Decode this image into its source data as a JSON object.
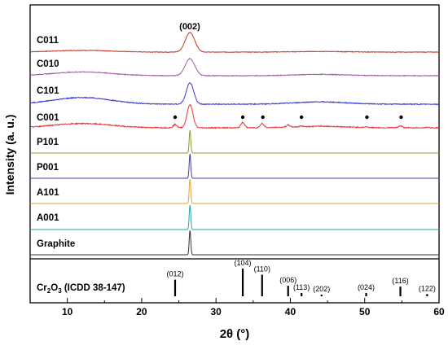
{
  "chart_data": {
    "type": "line",
    "xlabel": "2θ (°)",
    "ylabel": "Intensity (a. u.)",
    "xlim": [
      5,
      60
    ],
    "x_ticks": [
      10,
      20,
      30,
      40,
      50,
      60
    ],
    "x_tick_labels": [
      "10",
      "20",
      "30",
      "40",
      "50",
      "60"
    ],
    "peak_label_002": "(002)",
    "graphite_peak_2theta": 26.5,
    "series": [
      {
        "name": "C011",
        "color": "#c0392b",
        "shape": "amorphous",
        "hump_amp": 0.25,
        "peak_amp": 1.0,
        "peak_width": 0.9,
        "noise": 0.03
      },
      {
        "name": "C010",
        "color": "#a05ca6",
        "shape": "hump",
        "hump_amp": 0.6,
        "peak_amp": 0.95,
        "peak_width": 0.9,
        "noise": 0.04
      },
      {
        "name": "C101",
        "color": "#3b3bd9",
        "shape": "hump",
        "hump_amp": 0.9,
        "peak_amp": 1.0,
        "peak_width": 0.7,
        "noise": 0.04
      },
      {
        "name": "C001",
        "color": "#e53935",
        "shape": "cr2o3",
        "hump_amp": 0.5,
        "peak_amp": 0.95,
        "peak_width": 0.55,
        "noise": 0.04
      },
      {
        "name": "P101",
        "color": "#8a9a2b",
        "shape": "sharp",
        "hump_amp": 0.0,
        "peak_amp": 1.0,
        "peak_width": 0.15,
        "noise": 0.0
      },
      {
        "name": "P001",
        "color": "#3f3f99",
        "shape": "sharp",
        "hump_amp": 0.0,
        "peak_amp": 1.0,
        "peak_width": 0.15,
        "noise": 0.0
      },
      {
        "name": "A101",
        "color": "#e6a23c",
        "shape": "sharp",
        "hump_amp": 0.0,
        "peak_amp": 1.0,
        "peak_width": 0.15,
        "noise": 0.0
      },
      {
        "name": "A001",
        "color": "#2aa5a5",
        "shape": "sharp",
        "hump_amp": 0.0,
        "peak_amp": 1.0,
        "peak_width": 0.15,
        "noise": 0.0
      },
      {
        "name": "Graphite",
        "color": "#333333",
        "shape": "sharp",
        "hump_amp": 0.0,
        "peak_amp": 1.0,
        "peak_width": 0.15,
        "noise": 0.0
      }
    ],
    "c001_markers_2theta": [
      24.5,
      33.6,
      36.3,
      41.5,
      50.3,
      54.9
    ],
    "reference": {
      "name_main": "Cr",
      "name_sub1": "2",
      "name_mid": "O",
      "name_sub2": "3",
      "name_tail": " (ICDD 38-147)",
      "peaks": [
        {
          "x": 24.5,
          "rel": 0.6,
          "label": "(012)"
        },
        {
          "x": 33.6,
          "rel": 1.0,
          "label": "(104)"
        },
        {
          "x": 36.2,
          "rel": 0.78,
          "label": "(110)"
        },
        {
          "x": 39.7,
          "rel": 0.38,
          "label": "(006)"
        },
        {
          "x": 41.5,
          "rel": 0.12,
          "label": "(113)"
        },
        {
          "x": 44.2,
          "rel": 0.06,
          "label": "(202)"
        },
        {
          "x": 50.2,
          "rel": 0.12,
          "label": "(024)"
        },
        {
          "x": 54.8,
          "rel": 0.35,
          "label": "(116)"
        },
        {
          "x": 58.4,
          "rel": 0.08,
          "label": "(122)"
        }
      ]
    }
  }
}
